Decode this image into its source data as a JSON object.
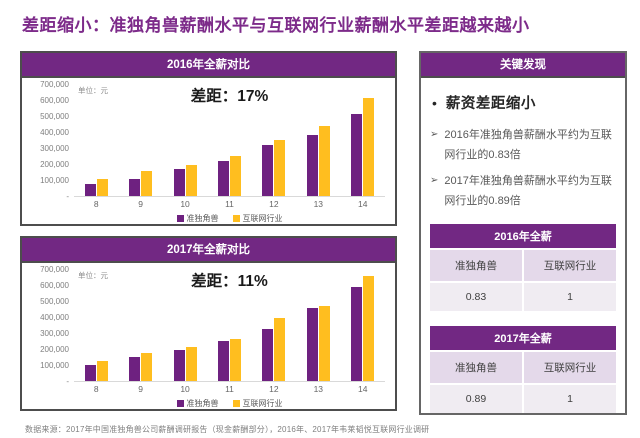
{
  "page_title": "差距缩小：准独角兽薪酬水平与互联网行业薪酬水平差距越来越小",
  "chart_data": [
    {
      "type": "bar",
      "title": "2016年全薪对比",
      "annotation": "差距：17%",
      "unit_label": "单位：元",
      "categories": [
        "8",
        "9",
        "10",
        "11",
        "12",
        "13",
        "14"
      ],
      "series": [
        {
          "name": "准独角兽",
          "color": "#6E2180",
          "values": [
            78000,
            106000,
            168000,
            222000,
            316000,
            383000,
            510000
          ]
        },
        {
          "name": "互联网行业",
          "color": "#FFBE1F",
          "values": [
            108000,
            155000,
            196000,
            250000,
            348000,
            436000,
            610000
          ]
        }
      ],
      "ylim": [
        0,
        700000
      ],
      "y_ticks": [
        "700,000",
        "600,000",
        "500,000",
        "400,000",
        "300,000",
        "200,000",
        "100,000",
        "-"
      ],
      "legend_position": "bottom",
      "grid": false
    },
    {
      "type": "bar",
      "title": "2017年全薪对比",
      "annotation": "差距：11%",
      "unit_label": "单位：元",
      "categories": [
        "8",
        "9",
        "10",
        "11",
        "12",
        "13",
        "14"
      ],
      "series": [
        {
          "name": "准独角兽",
          "color": "#6E2180",
          "values": [
            100000,
            150000,
            196000,
            252000,
            325000,
            456000,
            588000
          ]
        },
        {
          "name": "互联网行业",
          "color": "#FFBE1F",
          "values": [
            126000,
            175000,
            215000,
            260000,
            397000,
            470000,
            657000
          ]
        }
      ],
      "ylim": [
        0,
        700000
      ],
      "y_ticks": [
        "700,000",
        "600,000",
        "500,000",
        "400,000",
        "300,000",
        "200,000",
        "100,000",
        "-"
      ],
      "legend_position": "bottom",
      "grid": false
    }
  ],
  "findings": {
    "header": "关键发现",
    "headline_bullet": "•",
    "headline": "薪资差距缩小",
    "bullet_marker": "➢",
    "bullets": [
      "2016年准独角兽薪酬水平约为互联网行业的0.83倍",
      "2017年准独角兽薪酬水平约为互联网行业的0.89倍"
    ]
  },
  "tables": [
    {
      "title": "2016年全薪",
      "columns": [
        "准独角兽",
        "互联网行业"
      ],
      "values": [
        "0.83",
        "1"
      ]
    },
    {
      "title": "2017年全薪",
      "columns": [
        "准独角兽",
        "互联网行业"
      ],
      "values": [
        "0.89",
        "1"
      ]
    }
  ],
  "footer": "数据来源：2017年中国准独角兽公司薪酬调研报告（现金薪酬部分），2016年、2017年韦莱韬悦互联网行业调研",
  "colors": {
    "bar_purple": "#6E2180",
    "bar_orange": "#FFBE1F",
    "header_purple": "#722883",
    "title_purple": "#7D2B8A"
  }
}
